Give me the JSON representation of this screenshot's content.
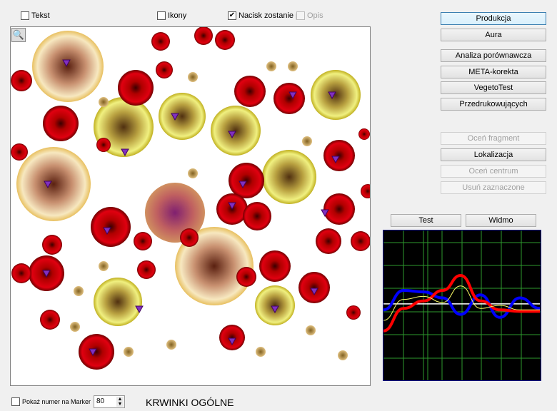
{
  "toolbar": {
    "tekst": {
      "label": "Tekst",
      "checked": false
    },
    "ikony": {
      "label": "Ikony",
      "checked": false
    },
    "nacisk": {
      "label": "Nacisk zostanie p",
      "checked": true
    },
    "opis": {
      "label": "Opis",
      "checked": false,
      "disabled": true
    }
  },
  "zoom_icon": "magnifier-icon",
  "buttons": {
    "produkcja": "Produkcja",
    "aura": "Aura",
    "analiza": "Analiza porównawcza",
    "meta": "META-korekta",
    "vegeto": "VegetoTest",
    "przedruk": "Przedrukowujących",
    "ocen_fragment": "Oceń fragment",
    "lokalizacja": "Lokalizacja",
    "ocen_centrum": "Oceń centrum",
    "usun": "Usuń zaznaczone",
    "test": "Test",
    "widmo": "Widmo"
  },
  "footer": {
    "marker_label": "Pokaż numer na Marker",
    "marker_checked": false,
    "number": "80",
    "title": "KRWINKI OGÓLNE"
  },
  "chart_data": {
    "type": "line",
    "grid": true,
    "series": [
      {
        "color": "#0000ff",
        "values": [
          47,
          60,
          59,
          55,
          44,
          57,
          42,
          55,
          48
        ]
      },
      {
        "color": "#ff0000",
        "values": [
          33,
          48,
          53,
          60,
          70,
          53,
          47,
          46,
          46
        ]
      },
      {
        "color": "#ffff66",
        "values": [
          40,
          54,
          56,
          52,
          63,
          48,
          50,
          47,
          47
        ]
      },
      {
        "color": "#ffffff",
        "values": [
          51,
          51,
          51,
          51,
          51,
          51,
          51,
          51,
          51
        ]
      }
    ]
  }
}
